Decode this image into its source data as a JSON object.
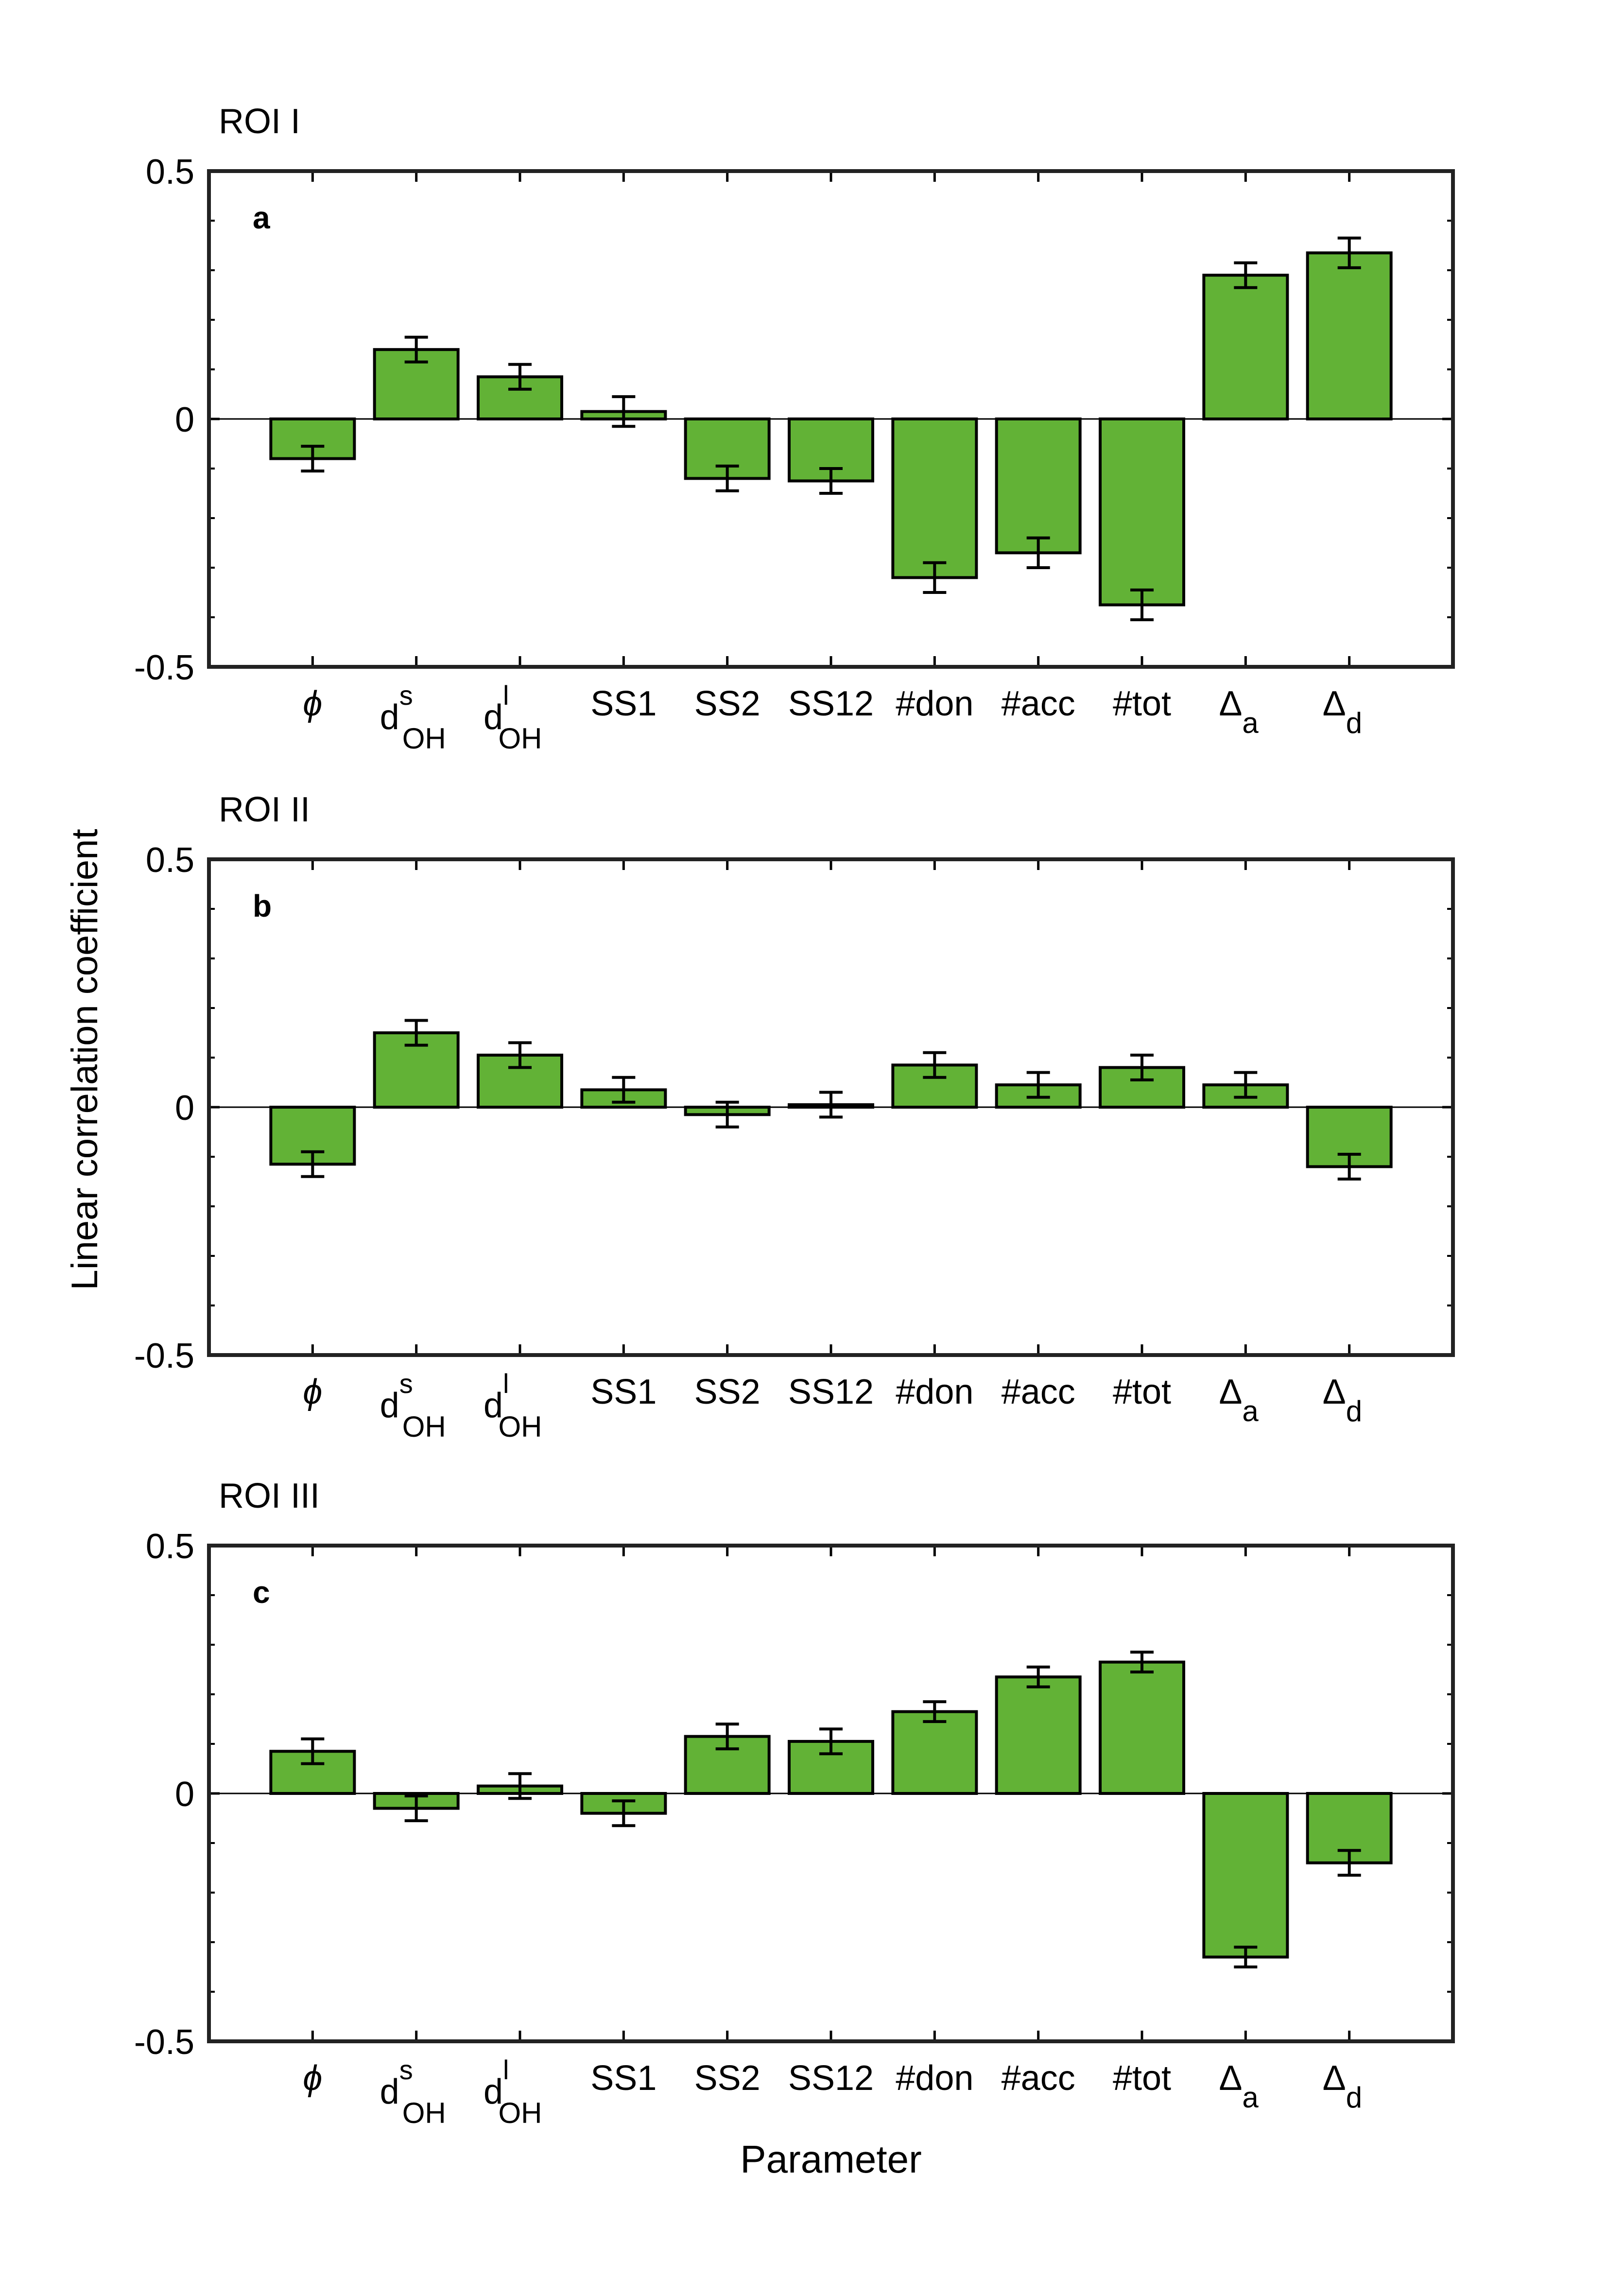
{
  "figure": {
    "ylabel": "Linear correlation coefficient",
    "xlabel": "Parameter",
    "bar_color": "#62b236",
    "edge_color": "#000000"
  },
  "categories": [
    {
      "main": "ϕ",
      "sub": "",
      "sup": ""
    },
    {
      "main": "d",
      "sub": "OH",
      "sup": "s"
    },
    {
      "main": "d",
      "sub": "OH",
      "sup": "l"
    },
    {
      "main": "SS1",
      "sub": "",
      "sup": ""
    },
    {
      "main": "SS2",
      "sub": "",
      "sup": ""
    },
    {
      "main": "SS12",
      "sub": "",
      "sup": ""
    },
    {
      "main": "#don",
      "sub": "",
      "sup": ""
    },
    {
      "main": "#acc",
      "sub": "",
      "sup": ""
    },
    {
      "main": "#tot",
      "sub": "",
      "sup": ""
    },
    {
      "main": "Δ",
      "sub": "a",
      "sup": ""
    },
    {
      "main": "Δ",
      "sub": "d",
      "sup": ""
    }
  ],
  "chart_data": [
    {
      "type": "bar",
      "title": "ROI I",
      "panel_label": "a",
      "xlabel": "",
      "ylabel": "Linear correlation coefficient",
      "ylim": [
        -0.5,
        0.5
      ],
      "yticks": [
        -0.5,
        0,
        0.5
      ],
      "ytick_labels": [
        "-0.5",
        "0",
        "0.5"
      ],
      "values": [
        -0.08,
        0.14,
        0.085,
        0.015,
        -0.12,
        -0.125,
        -0.32,
        -0.27,
        -0.375,
        0.29,
        0.335
      ],
      "errors": [
        0.025,
        0.025,
        0.025,
        0.03,
        0.025,
        0.025,
        0.03,
        0.03,
        0.03,
        0.025,
        0.03
      ]
    },
    {
      "type": "bar",
      "title": "ROI II",
      "panel_label": "b",
      "xlabel": "",
      "ylabel": "Linear correlation coefficient",
      "ylim": [
        -0.5,
        0.5
      ],
      "yticks": [
        -0.5,
        0,
        0.5
      ],
      "ytick_labels": [
        "-0.5",
        "0",
        "0.5"
      ],
      "values": [
        -0.115,
        0.15,
        0.105,
        0.035,
        -0.015,
        0.005,
        0.085,
        0.045,
        0.08,
        0.045,
        -0.12
      ],
      "errors": [
        0.025,
        0.025,
        0.025,
        0.025,
        0.025,
        0.025,
        0.025,
        0.025,
        0.025,
        0.025,
        0.025
      ]
    },
    {
      "type": "bar",
      "title": "ROI III",
      "panel_label": "c",
      "xlabel": "Parameter",
      "ylabel": "Linear correlation coefficient",
      "ylim": [
        -0.5,
        0.5
      ],
      "yticks": [
        -0.5,
        0,
        0.5
      ],
      "ytick_labels": [
        "-0.5",
        "0",
        "0.5"
      ],
      "values": [
        0.085,
        -0.03,
        0.015,
        -0.04,
        0.115,
        0.105,
        0.165,
        0.235,
        0.265,
        -0.33,
        -0.14
      ],
      "errors": [
        0.025,
        0.025,
        0.025,
        0.025,
        0.025,
        0.025,
        0.02,
        0.02,
        0.02,
        0.02,
        0.025
      ]
    }
  ]
}
